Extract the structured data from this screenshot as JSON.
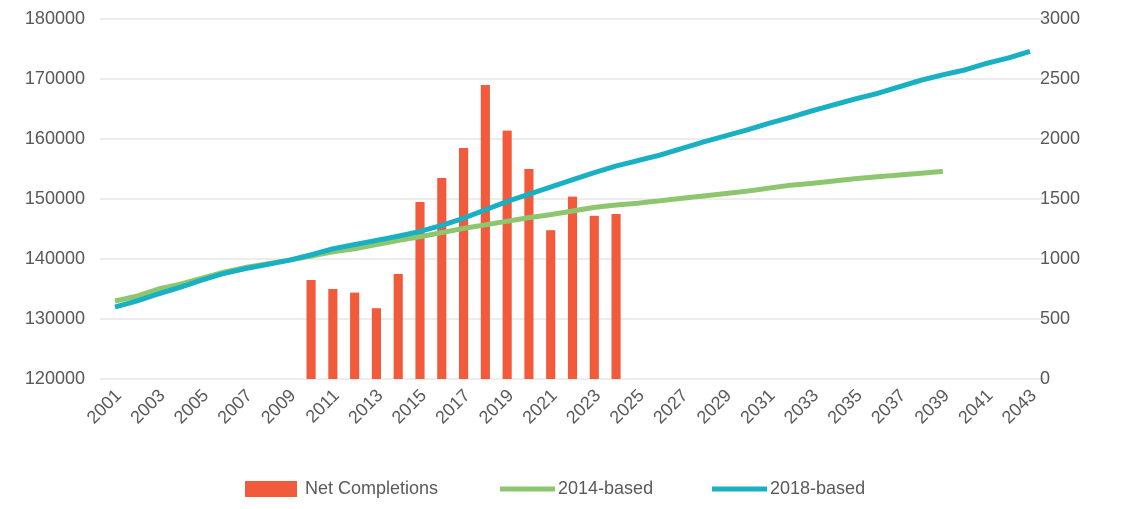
{
  "chart_data": {
    "type": "bar-line",
    "x": [
      2001,
      2002,
      2003,
      2004,
      2005,
      2006,
      2007,
      2008,
      2009,
      2010,
      2011,
      2012,
      2013,
      2014,
      2015,
      2016,
      2017,
      2018,
      2019,
      2020,
      2021,
      2022,
      2023,
      2024,
      2025,
      2026,
      2027,
      2028,
      2029,
      2030,
      2031,
      2032,
      2033,
      2034,
      2035,
      2036,
      2037,
      2038,
      2039,
      2040,
      2041,
      2042,
      2043
    ],
    "xlim": [
      2001,
      2043
    ],
    "xticks": [
      2001,
      2003,
      2005,
      2007,
      2009,
      2011,
      2013,
      2015,
      2017,
      2019,
      2021,
      2023,
      2025,
      2027,
      2029,
      2031,
      2033,
      2035,
      2037,
      2039,
      2041,
      2043
    ],
    "ylim": [
      120000,
      180000
    ],
    "yticks": [
      120000,
      130000,
      140000,
      150000,
      160000,
      170000,
      180000
    ],
    "y2lim": [
      0,
      3000
    ],
    "y2ticks": [
      0,
      500,
      1000,
      1500,
      2000,
      2500,
      3000
    ],
    "grid": true,
    "legend": "bottom",
    "series": [
      {
        "name": "Net Completions",
        "type": "bar",
        "axis": "y2",
        "color": "#f15a3b",
        "values": [
          null,
          null,
          null,
          null,
          null,
          null,
          null,
          null,
          null,
          825,
          750,
          720,
          590,
          875,
          1475,
          1675,
          1925,
          2450,
          2070,
          1750,
          1240,
          1520,
          1360,
          1375,
          null,
          null,
          null,
          null,
          null,
          null,
          null,
          null,
          null,
          null,
          null,
          null,
          null,
          null,
          null,
          null,
          null,
          null,
          null
        ]
      },
      {
        "name": "2014-based",
        "type": "line",
        "color": "#8dc66e",
        "values": [
          133000,
          133800,
          135000,
          135800,
          136800,
          137800,
          138600,
          139200,
          139800,
          140500,
          141200,
          141700,
          142400,
          143100,
          143700,
          144400,
          145100,
          145700,
          146300,
          146900,
          147400,
          148000,
          148600,
          149000,
          149300,
          149700,
          150100,
          150500,
          150900,
          151300,
          151800,
          152300,
          152600,
          153000,
          153400,
          153700,
          154000,
          154300,
          154600,
          null,
          null,
          null,
          null
        ]
      },
      {
        "name": "2018-based",
        "type": "line",
        "color": "#18b0c2",
        "values": [
          132000,
          133000,
          134200,
          135300,
          136500,
          137600,
          138400,
          139100,
          139800,
          140700,
          141700,
          142400,
          143100,
          143800,
          144600,
          145600,
          146800,
          148200,
          149600,
          150800,
          152000,
          153200,
          154400,
          155500,
          156400,
          157300,
          158400,
          159500,
          160500,
          161500,
          162600,
          163600,
          164700,
          165700,
          166700,
          167600,
          168700,
          169800,
          170700,
          171500,
          172600,
          173500,
          174600
        ]
      }
    ]
  }
}
